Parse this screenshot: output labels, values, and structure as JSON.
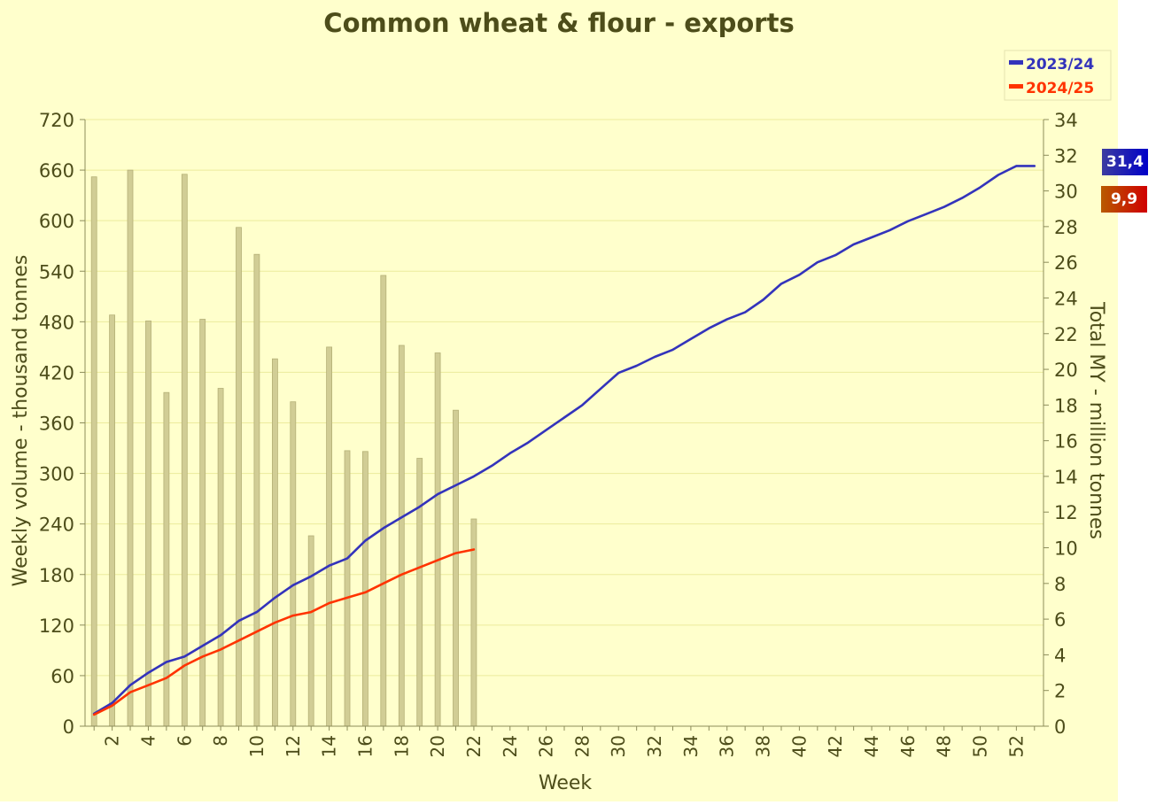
{
  "chart_data": {
    "type": "bar+line",
    "title": "Common wheat & flour - exports",
    "xlabel": "Week",
    "ylabel_left": "Weekly volume - thousand tonnes",
    "ylabel_right": "Total MY - million tonnes",
    "x_ticks": [
      2,
      4,
      6,
      8,
      10,
      12,
      14,
      16,
      18,
      20,
      22,
      24,
      26,
      28,
      30,
      32,
      34,
      36,
      38,
      40,
      42,
      44,
      46,
      48,
      50,
      52
    ],
    "xlim": [
      0.5,
      53.5
    ],
    "ylim_left": [
      0,
      720
    ],
    "ylim_right": [
      0,
      34
    ],
    "y_ticks_left": [
      0,
      60,
      120,
      180,
      240,
      300,
      360,
      420,
      480,
      540,
      600,
      660,
      720
    ],
    "y_ticks_right": [
      0,
      2,
      4,
      6,
      8,
      10,
      12,
      14,
      16,
      18,
      20,
      22,
      24,
      26,
      28,
      30,
      32,
      34
    ],
    "grid": true,
    "legend_position": "top-right",
    "bars": {
      "axis": "left",
      "color": "#d1cd95",
      "weeks": [
        1,
        2,
        3,
        4,
        5,
        6,
        7,
        8,
        9,
        10,
        11,
        12,
        13,
        14,
        15,
        16,
        17,
        18,
        19,
        20,
        21,
        22
      ],
      "values": [
        652,
        488,
        660,
        481,
        396,
        655,
        483,
        401,
        592,
        560,
        436,
        385,
        226,
        450,
        327,
        326,
        535,
        452,
        318,
        443,
        375,
        246
      ]
    },
    "series": [
      {
        "name": "2023/24",
        "axis": "right",
        "color": "#3333bb",
        "weeks": [
          1,
          2,
          3,
          4,
          5,
          6,
          7,
          8,
          9,
          10,
          11,
          12,
          13,
          14,
          15,
          16,
          17,
          18,
          19,
          20,
          21,
          22,
          23,
          24,
          25,
          26,
          27,
          28,
          29,
          30,
          31,
          32,
          33,
          34,
          35,
          36,
          37,
          38,
          39,
          40,
          41,
          42,
          43,
          44,
          45,
          46,
          47,
          48,
          49,
          50,
          51,
          52,
          53
        ],
        "values": [
          0.7,
          1.3,
          2.3,
          3.0,
          3.6,
          3.9,
          4.5,
          5.1,
          5.9,
          6.4,
          7.2,
          7.9,
          8.4,
          9.0,
          9.4,
          10.4,
          11.1,
          11.7,
          12.3,
          13.0,
          13.5,
          14.0,
          14.6,
          15.3,
          15.9,
          16.6,
          17.3,
          18.0,
          18.9,
          19.8,
          20.2,
          20.7,
          21.1,
          21.7,
          22.3,
          22.8,
          23.2,
          23.9,
          24.8,
          25.3,
          26.0,
          26.4,
          27.0,
          27.4,
          27.8,
          28.3,
          28.7,
          29.1,
          29.6,
          30.2,
          30.9,
          31.4,
          31.4
        ]
      },
      {
        "name": "2024/25",
        "axis": "right",
        "color": "#ff3300",
        "weeks": [
          1,
          2,
          3,
          4,
          5,
          6,
          7,
          8,
          9,
          10,
          11,
          12,
          13,
          14,
          15,
          16,
          17,
          18,
          19,
          20,
          21,
          22
        ],
        "values": [
          0.65,
          1.15,
          1.9,
          2.3,
          2.7,
          3.4,
          3.9,
          4.3,
          4.8,
          5.3,
          5.8,
          6.2,
          6.4,
          6.9,
          7.2,
          7.5,
          8.0,
          8.5,
          8.9,
          9.3,
          9.7,
          9.9
        ]
      }
    ],
    "end_labels": [
      {
        "series": "2023/24",
        "text": "31,4"
      },
      {
        "series": "2024/25",
        "text": "9,9"
      }
    ]
  },
  "colors": {
    "panel_bg": "#ffffcc",
    "plot_bg": "#ffffcc",
    "grid": "#eceb9c",
    "axis_text": "#4d4d1a",
    "title_text": "#4d4d1a",
    "badge_2023": "#0000a8",
    "badge_2024": "#c70000"
  }
}
